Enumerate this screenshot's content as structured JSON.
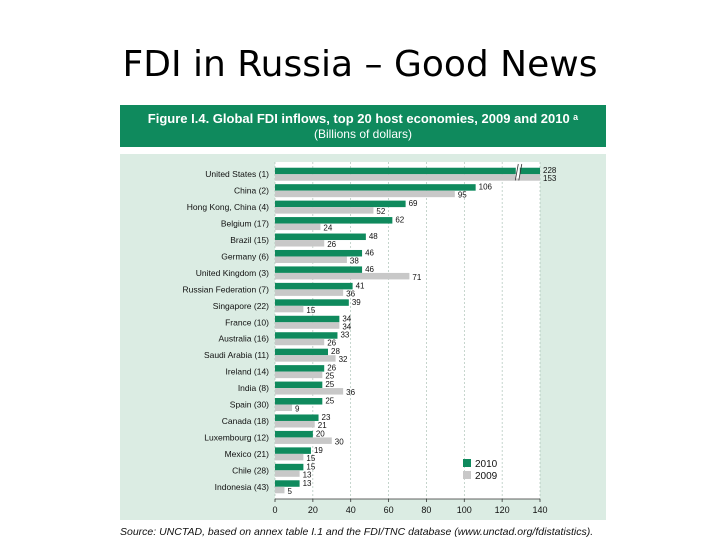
{
  "slide": {
    "title": "FDI in Russia – Good News"
  },
  "figure": {
    "title": "Figure I.4.  Global FDI inflows, top 20 host economies, 2009 and 2010 ᵃ",
    "subtitle": "(Billions of dollars)",
    "source": "Source: UNCTAD, based on annex table I.1 and the FDI/TNC database (www.unctad.org/fdistatistics)."
  },
  "colors": {
    "header_bg": "#0f8a5d",
    "panel_bg": "#dbece3",
    "series_2010": "#0f8a5d",
    "series_2009": "#c8c8c8"
  },
  "chart_data": {
    "type": "bar",
    "orientation": "horizontal",
    "categories": [
      "United States (1)",
      "China (2)",
      "Hong Kong, China (4)",
      "Belgium (17)",
      "Brazil (15)",
      "Germany (6)",
      "United Kingdom (3)",
      "Russian Federation (7)",
      "Singapore (22)",
      "France (10)",
      "Australia (16)",
      "Saudi Arabia (11)",
      "Ireland (14)",
      "India (8)",
      "Spain (30)",
      "Canada (18)",
      "Luxembourg (12)",
      "Mexico (21)",
      "Chile (28)",
      "Indonesia (43)"
    ],
    "series": [
      {
        "name": "2010",
        "values": [
          228,
          106,
          69,
          62,
          48,
          46,
          46,
          41,
          39,
          34,
          33,
          28,
          26,
          25,
          25,
          23,
          20,
          19,
          15,
          13
        ]
      },
      {
        "name": "2009",
        "values": [
          153,
          95,
          52,
          24,
          26,
          38,
          71,
          36,
          15,
          34,
          26,
          32,
          25,
          36,
          9,
          21,
          30,
          15,
          13,
          5
        ]
      }
    ],
    "value_labels": [
      [
        "228",
        "153"
      ],
      [
        "106",
        "95"
      ],
      [
        "69",
        "52"
      ],
      [
        "62",
        "24"
      ],
      [
        "48",
        "26"
      ],
      [
        "46",
        "38"
      ],
      [
        "46",
        "71"
      ],
      [
        "41",
        "36"
      ],
      [
        "39",
        "15"
      ],
      [
        "34",
        "34"
      ],
      [
        "33",
        "26"
      ],
      [
        "28",
        "32"
      ],
      [
        "26",
        "25"
      ],
      [
        "25",
        "36"
      ],
      [
        "25",
        "9"
      ],
      [
        "23",
        "21"
      ],
      [
        "20",
        "30"
      ],
      [
        "19",
        "15"
      ],
      [
        "15",
        "13"
      ],
      [
        "13",
        "5"
      ]
    ],
    "xlim": [
      0,
      140
    ],
    "xticks": [
      0,
      20,
      40,
      60,
      80,
      100,
      120,
      140
    ],
    "axis_break": true,
    "grid": true,
    "legend": "bottom-right"
  }
}
